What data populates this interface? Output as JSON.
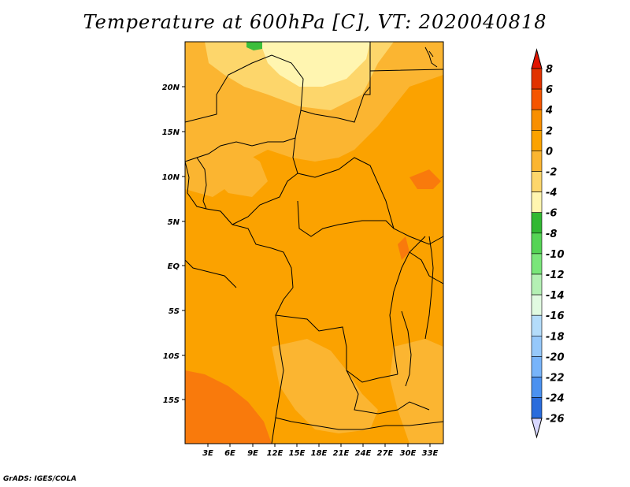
{
  "title": "Temperature at 600hPa [C], VT: 2020040818",
  "footer": "GrADS: IGES/COLA",
  "colors": {
    "background": "#ffffff",
    "map_base": "#fba200",
    "lighter": "#fbb531",
    "pale": "#fdd66b",
    "very_pale": "#fff5b0",
    "warm": "#f97a0c",
    "green": "#3cbe3c",
    "border": "#000000"
  },
  "map": {
    "lat_labels": [
      "20N",
      "15N",
      "10N",
      "5N",
      "EQ",
      "5S",
      "10S",
      "15S"
    ],
    "lon_labels": [
      "3E",
      "6E",
      "9E",
      "12E",
      "15E",
      "18E",
      "21E",
      "24E",
      "27E",
      "30E",
      "33E"
    ]
  },
  "colorbar": {
    "labels": [
      "8",
      "6",
      "4",
      "2",
      "0",
      "-2",
      "-4",
      "-6",
      "-8",
      "-10",
      "-12",
      "-14",
      "-16",
      "-18",
      "-20",
      "-22",
      "-24",
      "-26"
    ],
    "colors": [
      "#e13200",
      "#f55500",
      "#f98f00",
      "#fba200",
      "#fbb531",
      "#fdd66b",
      "#fff5b0",
      "#31b832",
      "#55d455",
      "#7ae67a",
      "#b4f0b4",
      "#e1fae1",
      "#b4dcfa",
      "#96c8fa",
      "#78b4fa",
      "#4b91f0",
      "#2a6cdc",
      "#1450c8",
      "#0a28a0",
      "#0a0a5a"
    ],
    "top_arrow_color": "#e11400",
    "bottom_arrow_color": "#d7d7ff"
  }
}
